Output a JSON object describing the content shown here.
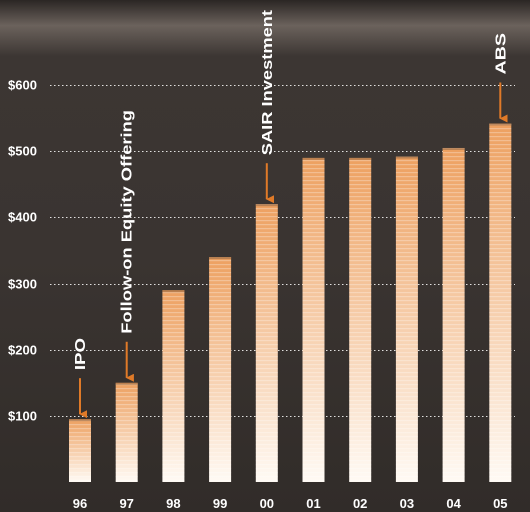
{
  "chart_data": {
    "type": "bar",
    "title": "",
    "xlabel": "",
    "ylabel": "",
    "categories": [
      "96",
      "97",
      "98",
      "99",
      "00",
      "01",
      "02",
      "03",
      "04",
      "05"
    ],
    "values": [
      95,
      150,
      290,
      340,
      420,
      490,
      490,
      492,
      505,
      542
    ],
    "y_ticks": [
      100,
      200,
      300,
      400,
      500,
      600
    ],
    "y_tick_labels": [
      "$100",
      "$200",
      "$300",
      "$400",
      "$500",
      "$600"
    ],
    "ylim": [
      0,
      700
    ],
    "grid": "dotted horizontal lines at each y tick",
    "annotations": [
      {
        "category": "96",
        "text": "IPO"
      },
      {
        "category": "97",
        "text": "Follow-on Equity Offering"
      },
      {
        "category": "00",
        "text": "SAIR Investment"
      },
      {
        "category": "05",
        "text": "ABS"
      }
    ],
    "colors": {
      "bar_top": "#eda060",
      "bar_bottom": "#fffaf4",
      "arrow": "#e07a28",
      "text": "#ffffff",
      "grid": "#ffffff",
      "background": "#3a3532"
    }
  }
}
